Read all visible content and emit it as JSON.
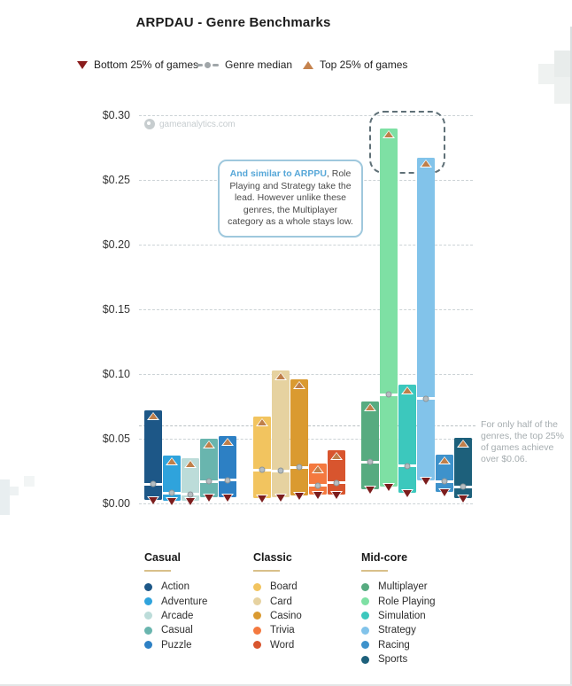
{
  "chart_data": {
    "type": "bar",
    "subtype": "quartile-range-bars",
    "title": "ARPDAU - Genre Benchmarks",
    "watermark": "gameanalytics.com",
    "xlabel": "",
    "ylabel": "",
    "ylim": [
      0,
      0.3
    ],
    "grid": true,
    "y_axis": {
      "ticks": [
        {
          "value": 0.3,
          "label": "$0.30"
        },
        {
          "value": 0.25,
          "label": "$0.25"
        },
        {
          "value": 0.2,
          "label": "$0.20"
        },
        {
          "value": 0.15,
          "label": "$0.15"
        },
        {
          "value": 0.1,
          "label": "$0.10"
        },
        {
          "value": 0.05,
          "label": "$0.05"
        },
        {
          "value": 0.0,
          "label": "$0.00"
        }
      ]
    },
    "legend": {
      "bottom25": "Bottom 25% of games",
      "median": "Genre median",
      "top25": "Top 25% of games"
    },
    "reference_line": {
      "value": 0.06
    },
    "side_note": "For only half of the genres, the top 25% of games achieve over $0.06.",
    "annotation": {
      "lead": "And similar to ARPPU",
      "body": ", Role Playing and Strategy take the lead. However unlike these genres, the Multiplayer category as a whole stays low."
    },
    "highlighted_genres": [
      "Role Playing",
      "Strategy"
    ],
    "marker_colors": {
      "bottom25": "#7c1d1d",
      "top25": "#bf7f4a",
      "median_dot": "#b5bdc1"
    },
    "groups": [
      {
        "name": "Casual",
        "genres": [
          {
            "label": "Action",
            "color": "#1d5787",
            "bottom25": 0.003,
            "median": 0.015,
            "top25": 0.072
          },
          {
            "label": "Adventure",
            "color": "#2fa3dc",
            "bottom25": 0.002,
            "median": 0.008,
            "top25": 0.037
          },
          {
            "label": "Arcade",
            "color": "#bcdcd9",
            "bottom25": 0.002,
            "median": 0.007,
            "top25": 0.035
          },
          {
            "label": "Casual",
            "color": "#69b5ae",
            "bottom25": 0.005,
            "median": 0.017,
            "top25": 0.05
          },
          {
            "label": "Puzzle",
            "color": "#2d80c4",
            "bottom25": 0.005,
            "median": 0.018,
            "top25": 0.052
          }
        ]
      },
      {
        "name": "Classic",
        "genres": [
          {
            "label": "Board",
            "color": "#f2c45f",
            "bottom25": 0.004,
            "median": 0.026,
            "top25": 0.067
          },
          {
            "label": "Card",
            "color": "#e6d2a0",
            "bottom25": 0.005,
            "median": 0.025,
            "top25": 0.103
          },
          {
            "label": "Casino",
            "color": "#da9a30",
            "bottom25": 0.006,
            "median": 0.028,
            "top25": 0.096
          },
          {
            "label": "Trivia",
            "color": "#f4793f",
            "bottom25": 0.007,
            "median": 0.014,
            "top25": 0.031
          },
          {
            "label": "Word",
            "color": "#d8552e",
            "bottom25": 0.007,
            "median": 0.016,
            "top25": 0.041
          }
        ]
      },
      {
        "name": "Mid-core",
        "genres": [
          {
            "label": "Multiplayer",
            "color": "#57ab80",
            "bottom25": 0.011,
            "median": 0.032,
            "top25": 0.079
          },
          {
            "label": "Role Playing",
            "color": "#7ee0a4",
            "bottom25": 0.013,
            "median": 0.084,
            "top25": 0.29
          },
          {
            "label": "Simulation",
            "color": "#3cc8bd",
            "bottom25": 0.008,
            "median": 0.029,
            "top25": 0.092
          },
          {
            "label": "Strategy",
            "color": "#82c3ea",
            "bottom25": 0.018,
            "median": 0.081,
            "top25": 0.267
          },
          {
            "label": "Racing",
            "color": "#3e92cb",
            "bottom25": 0.009,
            "median": 0.017,
            "top25": 0.038
          },
          {
            "label": "Sports",
            "color": "#1d607b",
            "bottom25": 0.004,
            "median": 0.013,
            "top25": 0.051
          }
        ]
      }
    ]
  }
}
